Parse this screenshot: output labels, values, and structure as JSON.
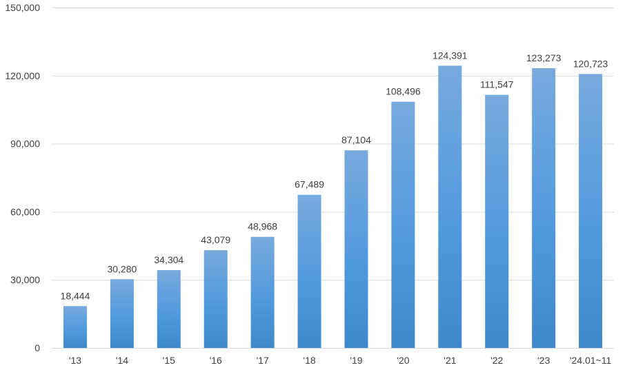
{
  "colors": {
    "bar_top": "#78aadd",
    "bar_bottom": "#3f88cc",
    "gridline": "#d9d9d9",
    "label_text": "#404040"
  },
  "chart_data": {
    "type": "bar",
    "categories": [
      "'13",
      "'14",
      "'15",
      "'16",
      "'17",
      "'18",
      "'19",
      "'20",
      "'21",
      "'22",
      "'23",
      "'24.01~11"
    ],
    "values": [
      18444,
      30280,
      34304,
      43079,
      48968,
      67489,
      87104,
      108496,
      124391,
      111547,
      123273,
      120723
    ],
    "value_labels": [
      "18,444",
      "30,280",
      "34,304",
      "43,079",
      "48,968",
      "67,489",
      "87,104",
      "108,496",
      "124,391",
      "111,547",
      "123,273",
      "120,723"
    ],
    "y_ticks": [
      0,
      30000,
      60000,
      90000,
      120000,
      150000
    ],
    "y_tick_labels": [
      "0",
      "30,000",
      "60,000",
      "90,000",
      "120,000",
      "150,000"
    ],
    "ylim": [
      0,
      150000
    ],
    "grid": true,
    "legend": "none"
  }
}
